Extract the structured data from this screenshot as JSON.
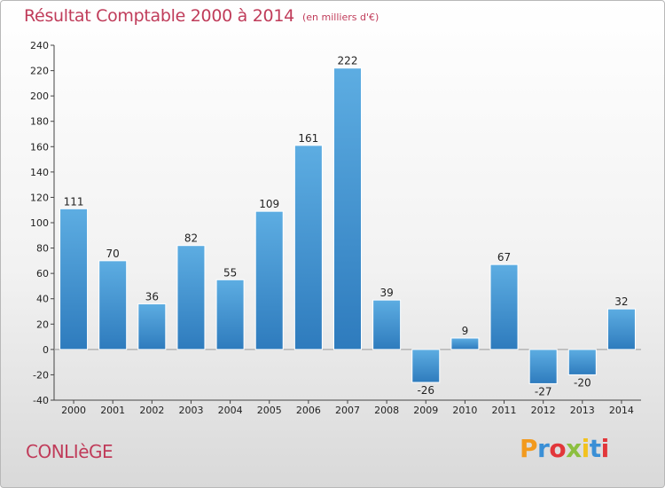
{
  "header": {
    "title": "Résultat Comptable 2000 à 2014",
    "subtitle": "(en milliers d'€)"
  },
  "footer": {
    "town": "CONLIèGE",
    "brand": "Proxiti",
    "brand_colors": [
      "#f29a1e",
      "#3a8fd6",
      "#e2363a",
      "#8cbf3f",
      "#f2c21e",
      "#3a8fd6",
      "#e2363a"
    ]
  },
  "chart_data": {
    "type": "bar",
    "title": "Résultat Comptable 2000 à 2014",
    "subtitle": "(en milliers d'€)",
    "xlabel": "",
    "ylabel": "",
    "categories": [
      "2000",
      "2001",
      "2002",
      "2003",
      "2004",
      "2005",
      "2006",
      "2007",
      "2008",
      "2009",
      "2010",
      "2011",
      "2012",
      "2013",
      "2014"
    ],
    "values": [
      111,
      70,
      36,
      82,
      55,
      109,
      161,
      222,
      39,
      -26,
      9,
      67,
      -27,
      -20,
      32
    ],
    "ylim": [
      -40,
      240
    ],
    "yticks": [
      -40,
      -20,
      0,
      20,
      40,
      60,
      80,
      100,
      120,
      140,
      160,
      180,
      200,
      220,
      240
    ],
    "grid": false,
    "bar_color_top": "#5dade2",
    "bar_color_bottom": "#2e7bbd"
  }
}
